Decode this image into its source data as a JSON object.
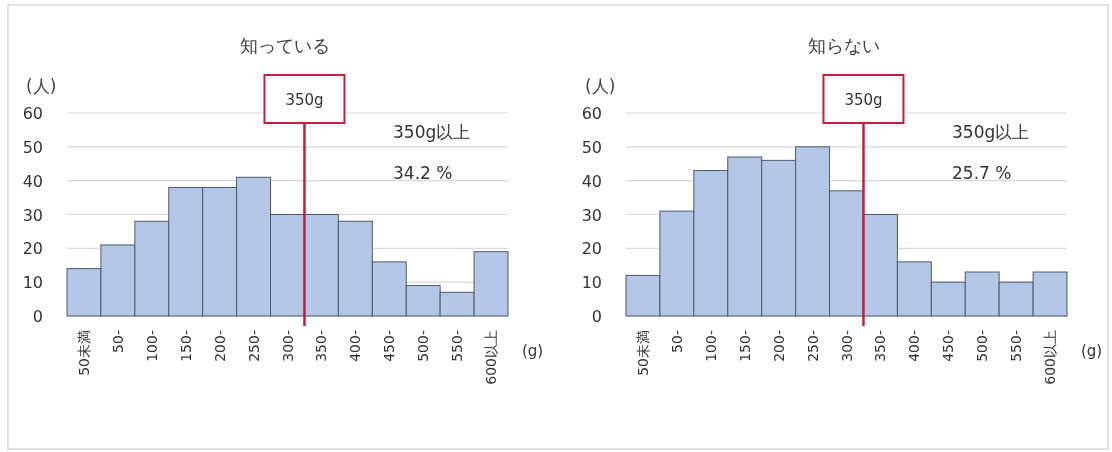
{
  "chart_data": [
    {
      "type": "bar",
      "title": "知っている",
      "ylabel": "(人)",
      "xlabel": "(g)",
      "categories": [
        "50未満",
        "50-",
        "100-",
        "150-",
        "200-",
        "250-",
        "300-",
        "350-",
        "400-",
        "450-",
        "500-",
        "550-",
        "600以上"
      ],
      "values": [
        14,
        21,
        28,
        38,
        38,
        41,
        30,
        30,
        28,
        16,
        9,
        7,
        19
      ],
      "color": "#b4c7e7",
      "ylim": [
        0,
        60
      ],
      "yticks": [
        0,
        10,
        20,
        30,
        40,
        50,
        60
      ],
      "grid": "y",
      "ref_lines": [
        {
          "axis": "x",
          "value": "350-",
          "label": "350g",
          "color": "#c0203a"
        }
      ],
      "annotations": [
        "350g以上",
        "34.2 %"
      ]
    },
    {
      "type": "bar",
      "title": "知らない",
      "ylabel": "(人)",
      "xlabel": "(g)",
      "categories": [
        "50未満",
        "50-",
        "100-",
        "150-",
        "200-",
        "250-",
        "300-",
        "350-",
        "400-",
        "450-",
        "500-",
        "550-",
        "600以上"
      ],
      "values": [
        12,
        31,
        43,
        47,
        46,
        50,
        37,
        30,
        16,
        10,
        13,
        10,
        13
      ],
      "color": "#b4c7e7",
      "ylim": [
        0,
        60
      ],
      "yticks": [
        0,
        10,
        20,
        30,
        40,
        50,
        60
      ],
      "grid": "y",
      "ref_lines": [
        {
          "axis": "x",
          "value": "350-",
          "label": "350g",
          "color": "#c0203a"
        }
      ],
      "annotations": [
        "350g以上",
        "25.7 %"
      ]
    }
  ]
}
